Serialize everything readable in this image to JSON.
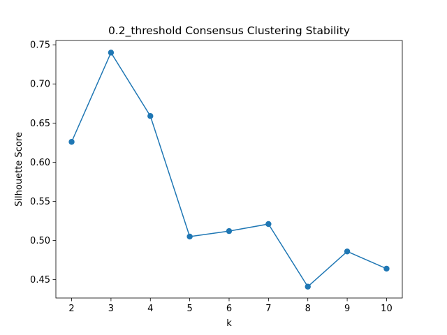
{
  "chart_data": {
    "type": "line",
    "title": "0.2_threshold Consensus Clustering Stability",
    "xlabel": "k",
    "ylabel": "Silhouette Score",
    "x": [
      2,
      3,
      4,
      5,
      6,
      7,
      8,
      9,
      10
    ],
    "series": [
      {
        "values": [
          0.626,
          0.74,
          0.659,
          0.505,
          0.512,
          0.521,
          0.441,
          0.486,
          0.464
        ]
      }
    ],
    "xticks": [
      2,
      3,
      4,
      5,
      6,
      7,
      8,
      9,
      10
    ],
    "xtick_labels": [
      "2",
      "3",
      "4",
      "5",
      "6",
      "7",
      "8",
      "9",
      "10"
    ],
    "yticks": [
      0.45,
      0.5,
      0.55,
      0.6,
      0.65,
      0.7,
      0.75
    ],
    "ytick_labels": [
      "0.45",
      "0.50",
      "0.55",
      "0.60",
      "0.65",
      "0.70",
      "0.75"
    ],
    "xlim": [
      1.6,
      10.4
    ],
    "ylim": [
      0.4265,
      0.7555
    ],
    "grid": false,
    "legend": "none",
    "line_color": "#1f77b4",
    "marker": "circle"
  }
}
